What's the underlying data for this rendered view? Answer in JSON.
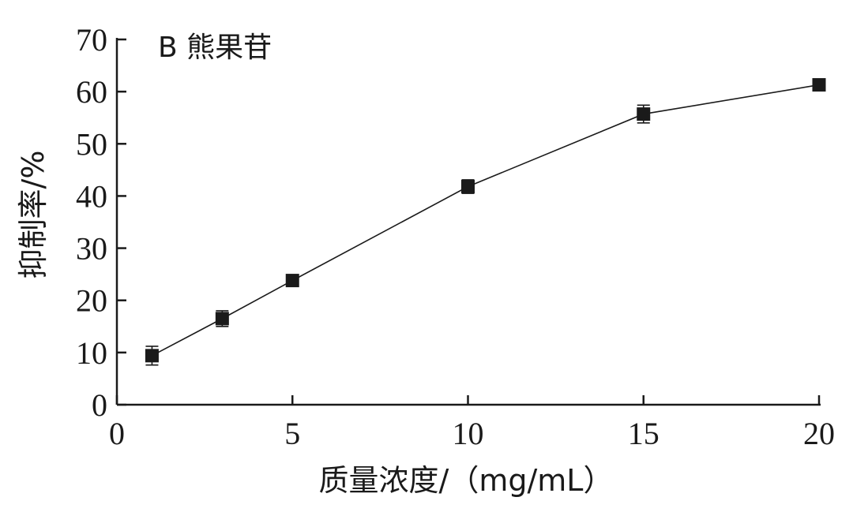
{
  "chart_data": {
    "type": "line",
    "title": "",
    "panel_label": "B 熊果苷",
    "xlabel": "质量浓度/（mg/mL）",
    "ylabel": "抑制率/%",
    "xlim": [
      0,
      20
    ],
    "ylim": [
      0,
      70
    ],
    "x_ticks": [
      0,
      5,
      10,
      15,
      20
    ],
    "y_ticks": [
      0,
      10,
      20,
      30,
      40,
      50,
      60,
      70
    ],
    "grid": false,
    "series": [
      {
        "x": [
          1,
          3,
          5,
          10,
          15,
          20
        ],
        "y": [
          9.4,
          16.5,
          23.8,
          41.8,
          55.7,
          61.3
        ],
        "error": [
          1.8,
          1.5,
          0.8,
          1.3,
          1.7,
          0.8
        ],
        "marker": "square",
        "color": "#1a1a1a"
      }
    ]
  }
}
